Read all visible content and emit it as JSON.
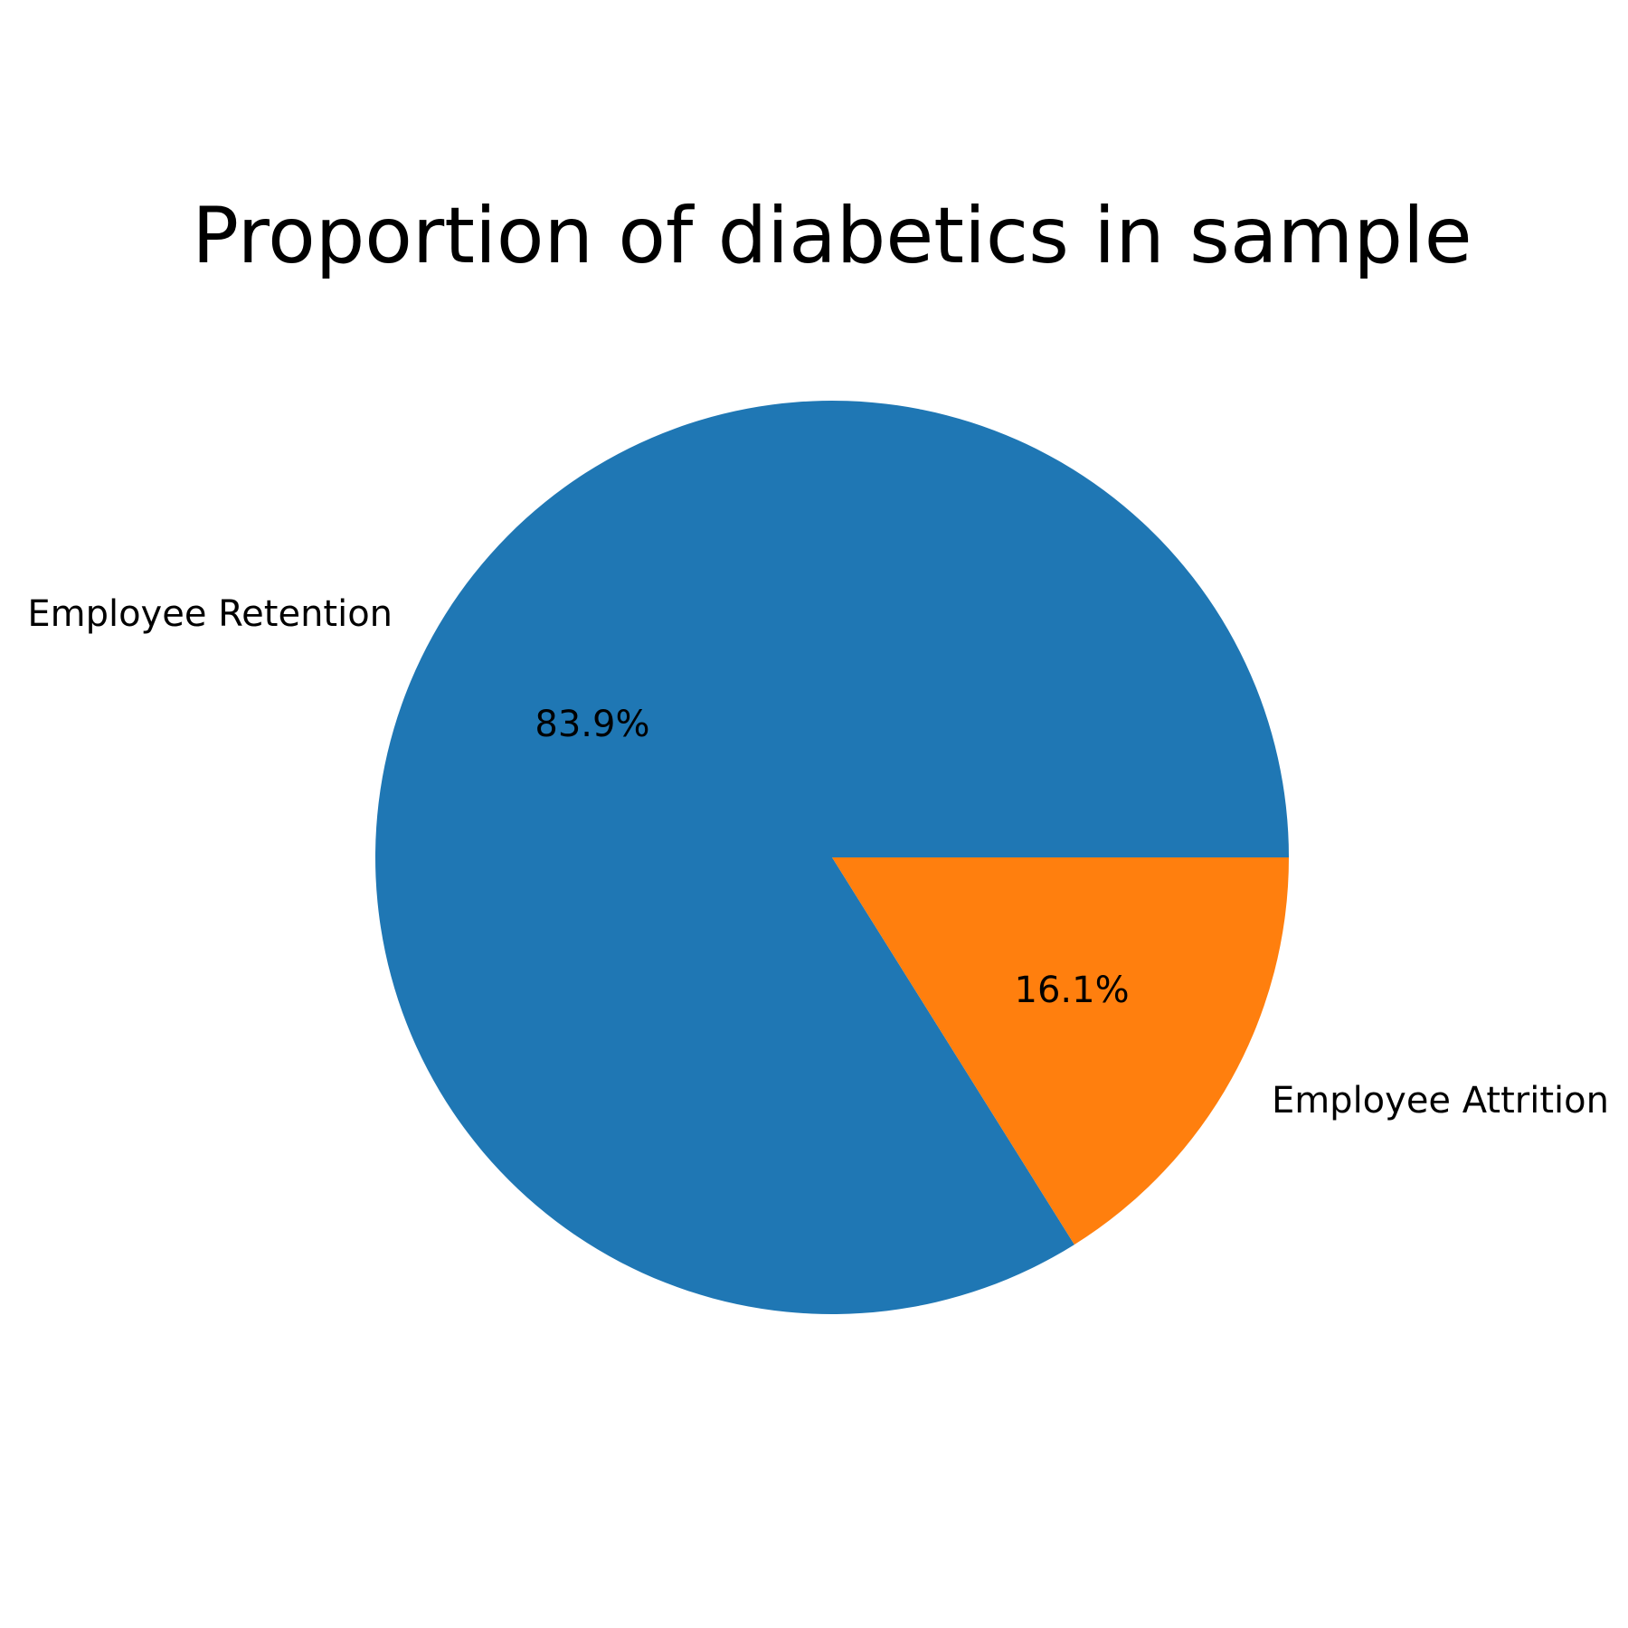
{
  "chart_data": {
    "type": "pie",
    "title": "Proportion of diabetics in sample",
    "slices": [
      {
        "label": "Employee Retention",
        "value": 83.9,
        "pct_label": "83.9%",
        "color": "#1f77b4"
      },
      {
        "label": "Employee Attrition",
        "value": 16.1,
        "pct_label": "16.1%",
        "color": "#ff7f0e"
      }
    ],
    "start_angle_deg": 0,
    "direction": "counterclockwise",
    "legend": "none"
  }
}
